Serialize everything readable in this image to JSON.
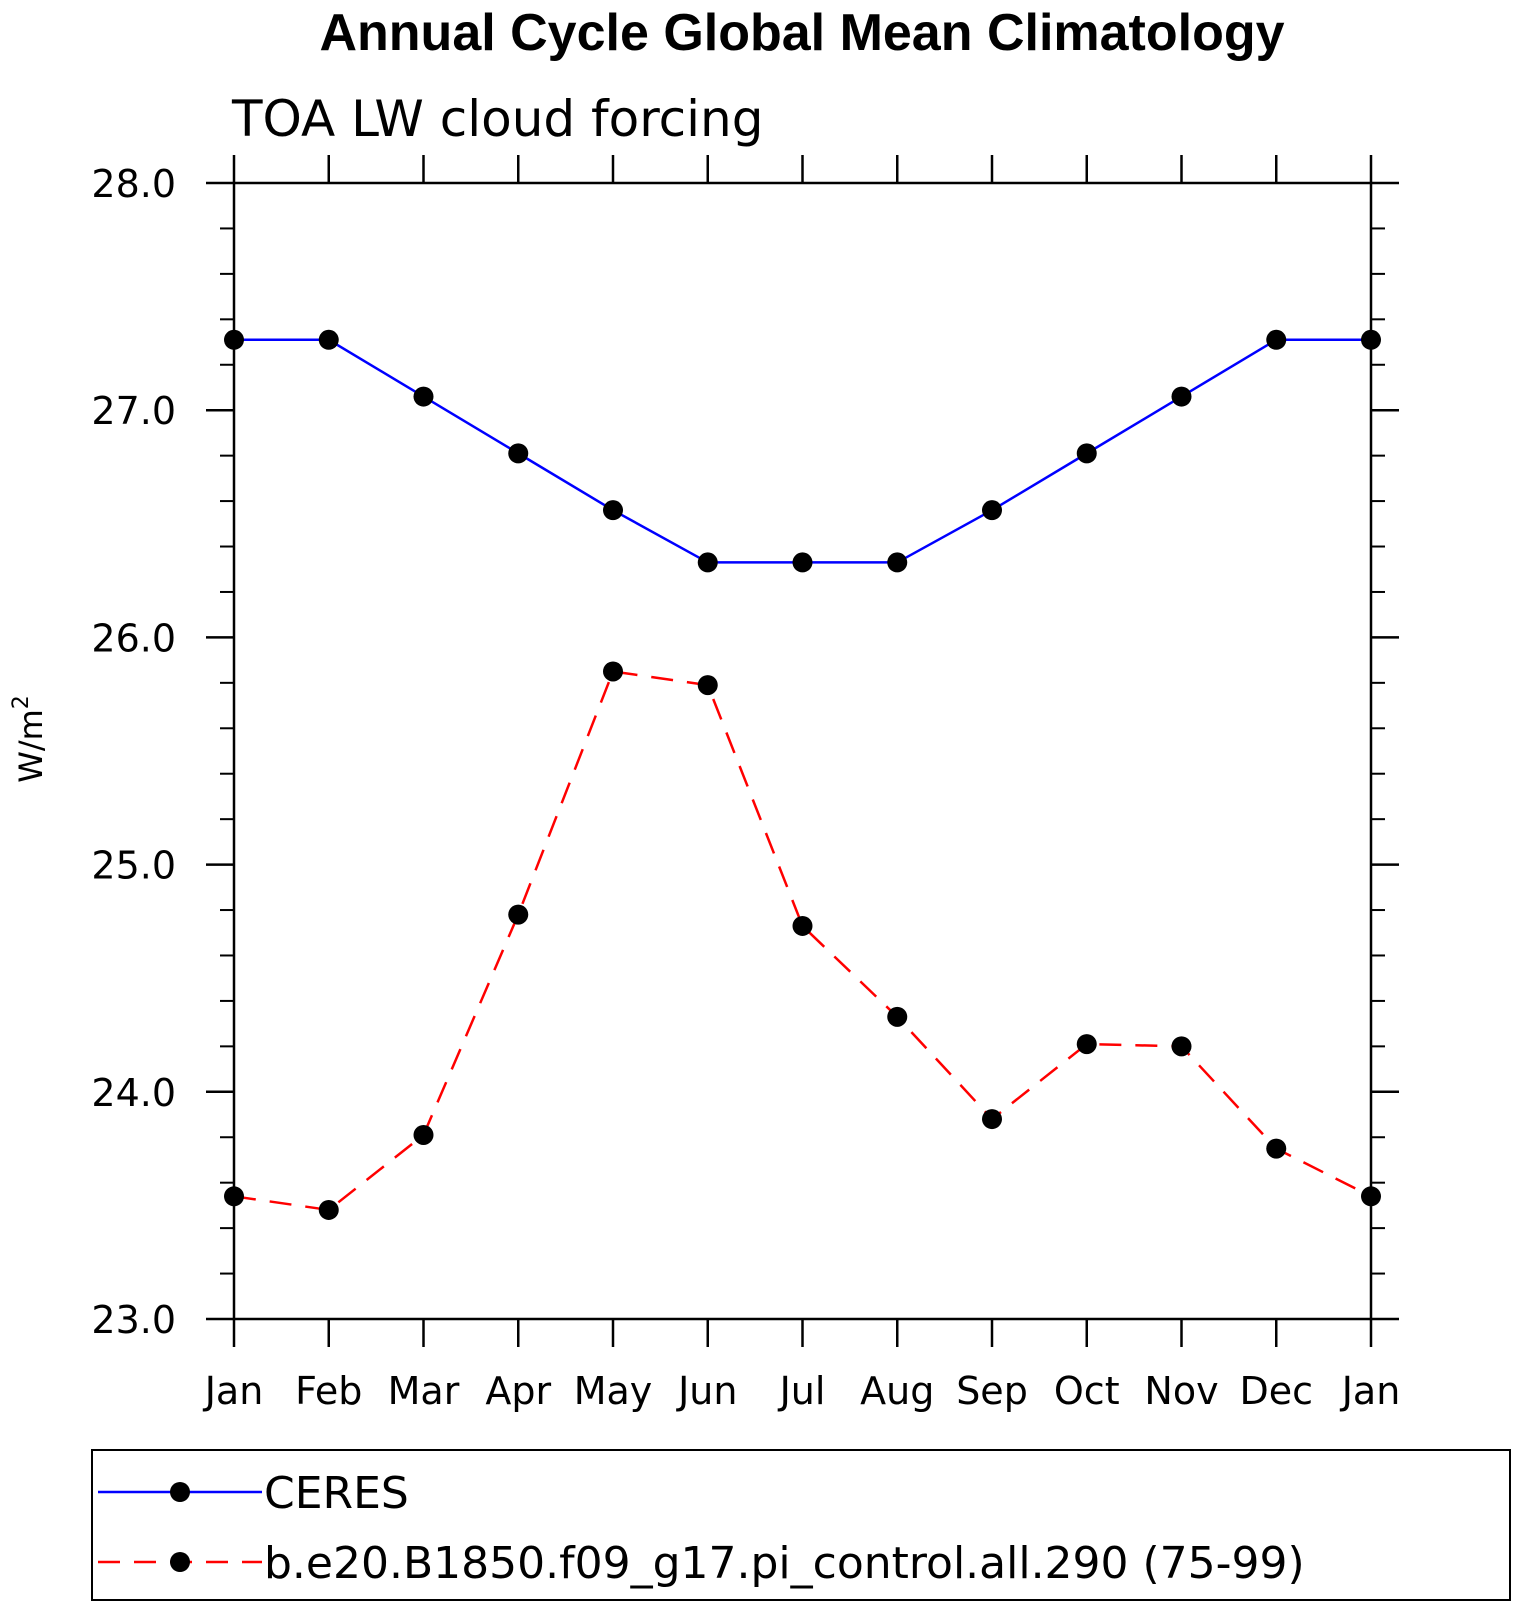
{
  "chart_data": {
    "type": "line",
    "title": "Annual Cycle Global Mean Climatology",
    "subtitle": "TOA LW cloud forcing",
    "ylabel": "W/m",
    "ylabel_sup": "2",
    "xlabel": "",
    "categories": [
      "Jan",
      "Feb",
      "Mar",
      "Apr",
      "May",
      "Jun",
      "Jul",
      "Aug",
      "Sep",
      "Oct",
      "Nov",
      "Dec",
      "Jan"
    ],
    "yticks": [
      "23.0",
      "24.0",
      "25.0",
      "26.0",
      "27.0",
      "28.0"
    ],
    "ylim": [
      23.0,
      28.0
    ],
    "grid": false,
    "legend_position": "bottom",
    "series": [
      {
        "name": "CERES",
        "color": "#0000ff",
        "style": "solid",
        "marker": "filled-circle",
        "values": [
          27.31,
          27.31,
          27.06,
          26.81,
          26.56,
          26.33,
          26.33,
          26.33,
          26.56,
          26.81,
          27.06,
          27.31,
          27.31
        ]
      },
      {
        "name": "b.e20.B1850.f09_g17.pi_control.all.290 (75-99)",
        "color": "#ff0000",
        "style": "dashed",
        "marker": "filled-circle",
        "values": [
          23.54,
          23.48,
          23.81,
          24.78,
          25.85,
          25.79,
          24.73,
          24.33,
          23.88,
          24.21,
          24.2,
          23.75,
          23.54
        ]
      }
    ]
  }
}
